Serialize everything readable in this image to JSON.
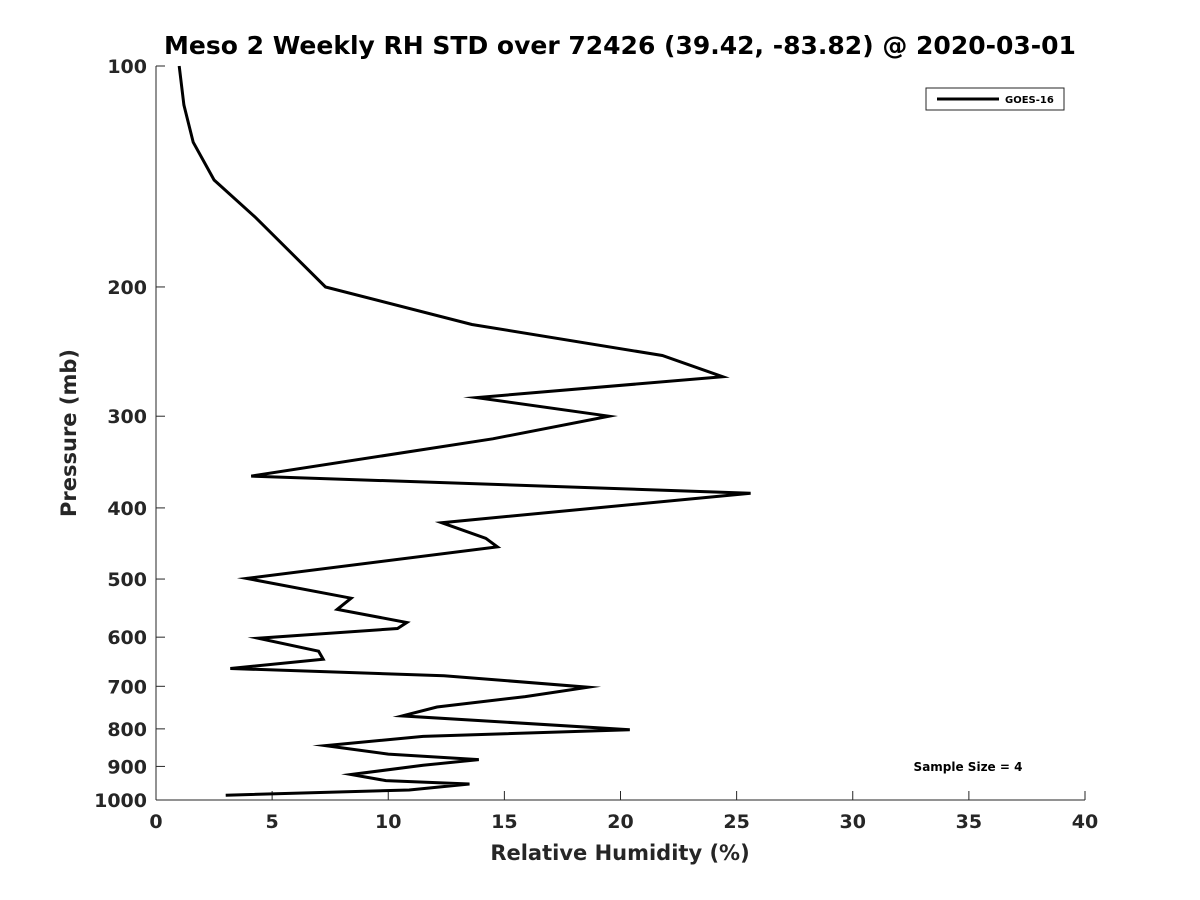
{
  "chart_data": {
    "type": "line",
    "title": "Meso 2 Weekly RH STD over 72426 (39.42, -83.82) @ 2020-03-01",
    "xlabel": "Relative Humidity (%)",
    "ylabel": "Pressure (mb)",
    "xlim": [
      0,
      40
    ],
    "ylim": [
      100,
      1000
    ],
    "y_scale": "log",
    "y_reversed": true,
    "x_ticks": [
      0,
      5,
      10,
      15,
      20,
      25,
      30,
      35,
      40
    ],
    "y_ticks": [
      100,
      200,
      300,
      400,
      500,
      600,
      700,
      800,
      900,
      1000
    ],
    "grid": false,
    "legend_position": "top-right",
    "annotation": "Sample Size = 4",
    "series": [
      {
        "name": "GOES-16",
        "color": "#000000",
        "points": [
          [
            1.0,
            100
          ],
          [
            1.2,
            113
          ],
          [
            1.6,
            127
          ],
          [
            2.5,
            143
          ],
          [
            4.3,
            161
          ],
          [
            7.3,
            200
          ],
          [
            13.6,
            225
          ],
          [
            21.8,
            248
          ],
          [
            24.4,
            265
          ],
          [
            13.8,
            283
          ],
          [
            19.5,
            300
          ],
          [
            14.5,
            322
          ],
          [
            4.1,
            362
          ],
          [
            25.6,
            382
          ],
          [
            12.3,
            419
          ],
          [
            14.2,
            440
          ],
          [
            14.7,
            452
          ],
          [
            3.9,
            499
          ],
          [
            8.4,
            531
          ],
          [
            7.8,
            550
          ],
          [
            10.8,
            573
          ],
          [
            10.4,
            584
          ],
          [
            4.4,
            602
          ],
          [
            7.0,
            627
          ],
          [
            7.2,
            643
          ],
          [
            3.2,
            662
          ],
          [
            12.4,
            677
          ],
          [
            18.6,
            702
          ],
          [
            15.9,
            723
          ],
          [
            12.1,
            747
          ],
          [
            10.6,
            768
          ],
          [
            20.4,
            802
          ],
          [
            11.5,
            819
          ],
          [
            7.3,
            843
          ],
          [
            10.0,
            866
          ],
          [
            13.9,
            881
          ],
          [
            11.5,
            897
          ],
          [
            8.4,
            923
          ],
          [
            9.9,
            941
          ],
          [
            13.5,
            951
          ],
          [
            10.9,
            969
          ],
          [
            3.0,
            985
          ]
        ]
      }
    ]
  }
}
